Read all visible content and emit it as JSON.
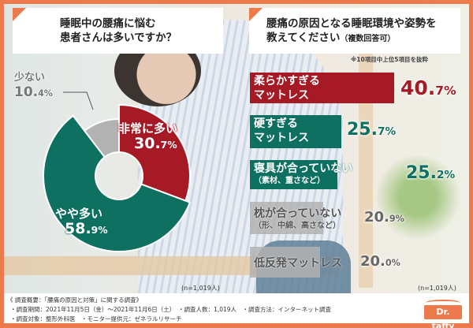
{
  "colors": {
    "frame": "#ec7a4a",
    "red": "#a51a25",
    "green": "#0e7060",
    "gray": "#b2b2b2",
    "gray_text": "#666666"
  },
  "left_panel": {
    "title_line1": "睡眠中の腰痛に悩む",
    "title_line2": "患者さんは多いですか？",
    "n_label": "(n=1,019人)"
  },
  "right_panel": {
    "title_line1": "腰痛の原因となる睡眠環境や姿勢を",
    "title_line2": "教えてください",
    "title_note": "（複数回答可）",
    "top_note": "※10項目中上位5項目を抜粋",
    "n_label": "(n=1,019人)"
  },
  "chart_data": [
    {
      "type": "pie",
      "title": "睡眠中の腰痛に悩む患者さんは多いですか？",
      "categories": [
        "非常に多い",
        "やや多い",
        "少ない"
      ],
      "values": [
        30.7,
        58.9,
        10.4
      ],
      "colors": [
        "#a51a25",
        "#0e7060",
        "#b2b2b2"
      ],
      "unit": "%",
      "donut": true,
      "n": "n=1,019人",
      "labels_display": {
        "red_label": "非常に多い",
        "red_int": "30.",
        "red_dec": "7%",
        "green_label": "やや多い",
        "green_int": "58.",
        "green_dec": "9%",
        "gray_label": "少ない",
        "gray_int": "10.",
        "gray_dec": "4%"
      }
    },
    {
      "type": "bar",
      "orientation": "horizontal",
      "title": "腰痛の原因となる睡眠環境や姿勢を教えてください（複数回答可）",
      "note": "※10項目中上位5項目を抜粋",
      "categories": [
        "柔らかすぎるマットレス",
        "硬すぎるマットレス",
        "寝具が合っていない（素材、重さなど）",
        "枕が合っていない（形、中綿、高さなど）",
        "低反発マットレス"
      ],
      "values": [
        40.7,
        25.7,
        25.2,
        20.9,
        20.0
      ],
      "unit": "%",
      "n": "n=1,019人",
      "bars": [
        {
          "line1": "柔らかすぎる",
          "line2": "マットレス",
          "sub": "",
          "int": "40.",
          "dec": "7%",
          "color": "#a51a25",
          "text_color": "#fff",
          "value_color": "#a51a25"
        },
        {
          "line1": "硬すぎる",
          "line2": "マットレス",
          "sub": "",
          "int": "25.",
          "dec": "7%",
          "color": "#0e7060",
          "text_color": "#fff",
          "value_color": "#0e7060"
        },
        {
          "line1": "寝具が合っていない",
          "line2": "",
          "sub": "（素材、重さなど）",
          "int": "25.",
          "dec": "2%",
          "color": "#0e7060",
          "text_color": "#fff",
          "value_color": "#0e7060"
        },
        {
          "line1": "枕が合っていない",
          "line2": "",
          "sub": "（形、中綿、高さなど）",
          "int": "20.",
          "dec": "9%",
          "color": "#b2b2b2",
          "text_color": "#555",
          "value_color": "#666"
        },
        {
          "line1": "低反発マットレス",
          "line2": "",
          "sub": "",
          "int": "20.",
          "dec": "0%",
          "color": "#b2b2b2",
          "text_color": "#555",
          "value_color": "#666"
        }
      ]
    }
  ],
  "footer": {
    "line1": "《 調査概要：「腰痛の原因と対策」に関する調査》",
    "line2": "・調査期間：2021年11月5日（金）～2021年11月6日（土）　・調査人数：1,019人　・調査方法：インターネット調査",
    "line3": "・調査対象：整形外科医　・モニター提供元：ゼネラルリサーチ",
    "logo_text": "Dr. taffy"
  }
}
